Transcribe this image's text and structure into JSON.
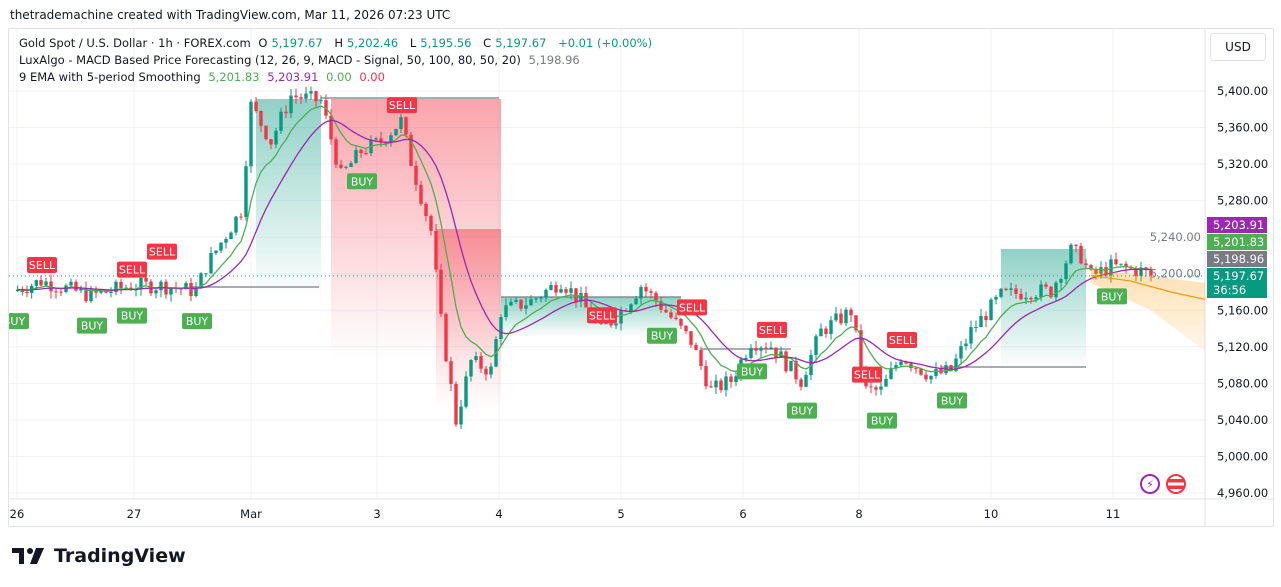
{
  "credit": "thetrademachine created with TradingView.com, Mar 11, 2026 07:23 UTC",
  "legend": {
    "symbol": "Gold Spot / U.S. Dollar · 1h · FOREX.com",
    "o_label": "O",
    "o": "5,197.67",
    "h_label": "H",
    "h": "5,202.46",
    "l_label": "L",
    "l": "5,195.56",
    "c_label": "C",
    "c": "5,197.67",
    "change": "+0.01 (+0.00%)",
    "indicator1": "LuxAlgo - MACD Based Price Forecasting (12, 26, 9, MACD - Signal, 50, 100, 80, 50, 20)",
    "indicator1_value": "5,198.96",
    "indicator2": "9 EMA with 5-period Smoothing",
    "indicator2_values": [
      "5,201.83",
      "5,203.91",
      "0.00",
      "0.00"
    ]
  },
  "currency_button": "USD",
  "footer_logo": "TradingView",
  "icons": [
    "lightning-icon",
    "us-flag-icon",
    "tradingview-logo-icon"
  ],
  "colors": {
    "up": "#089981",
    "down": "#f23645",
    "ema": "#4caf50",
    "smoothed": "#9c27b0",
    "forecast": "#ff9800",
    "buy": "#4caf50",
    "sell": "#f23645"
  },
  "chart_data": {
    "type": "candlestick",
    "symbol": "XAUUSD",
    "timeframe": "1h",
    "ylim": [
      4940,
      5430
    ],
    "y_ticks": [
      "5,400.00",
      "5,360.00",
      "5,320.00",
      "5,280.00",
      "5,240.00",
      "5,200.00",
      "5,160.00",
      "5,120.00",
      "5,080.00",
      "5,040.00",
      "5,000.00",
      "4,960.00"
    ],
    "x_ticks": [
      "26",
      "27",
      "Mar",
      "3",
      "4",
      "5",
      "6",
      "8",
      "10",
      "11"
    ],
    "grid": true,
    "approx_close_path": [
      5181,
      5192,
      5176,
      5187,
      5187,
      5181,
      5208,
      5269,
      5384,
      5345,
      5395,
      5389,
      5307,
      5334,
      5345,
      5367,
      5323,
      5247,
      5148,
      5039,
      5104,
      5094,
      5159,
      5170,
      5192,
      5170,
      5137,
      5159,
      5187,
      5165,
      5126,
      5072,
      5083,
      5126,
      5121,
      5083,
      5137,
      5159,
      5072,
      5072,
      5110,
      5088,
      5094,
      5137,
      5176,
      5181,
      5181,
      5225,
      5219,
      5197,
      5208,
      5203,
      5198
    ],
    "signals": [
      {
        "type": "BUY",
        "at": 0
      },
      {
        "type": "SELL",
        "at": 1
      },
      {
        "type": "BUY",
        "at": 2
      },
      {
        "type": "SELL",
        "at": 3
      },
      {
        "type": "BUY",
        "at": 3
      },
      {
        "type": "SELL",
        "at": 4
      },
      {
        "type": "BUY",
        "at": 5
      },
      {
        "type": "BUY",
        "at": 13
      },
      {
        "type": "SELL",
        "at": 15
      },
      {
        "type": "SELL",
        "at": 26
      },
      {
        "type": "BUY",
        "at": 29
      },
      {
        "type": "SELL",
        "at": 30
      },
      {
        "type": "BUY",
        "at": 33
      },
      {
        "type": "SELL",
        "at": 34
      },
      {
        "type": "BUY",
        "at": 35
      },
      {
        "type": "SELL",
        "at": 38
      },
      {
        "type": "BUY",
        "at": 39
      },
      {
        "type": "SELL",
        "at": 40
      },
      {
        "type": "BUY",
        "at": 42
      },
      {
        "type": "BUY",
        "at": 50
      }
    ],
    "price_labels": [
      {
        "name": "smoothed EMA",
        "value": "5,203.91",
        "color": "#9c27b0"
      },
      {
        "name": "9 EMA",
        "value": "5,201.83",
        "color": "#4caf50"
      },
      {
        "name": "forecast",
        "value": "5,198.96",
        "color": "#787b86"
      },
      {
        "name": "last price",
        "value": "5,197.67",
        "countdown": "36:56",
        "color": "#089981"
      }
    ]
  }
}
